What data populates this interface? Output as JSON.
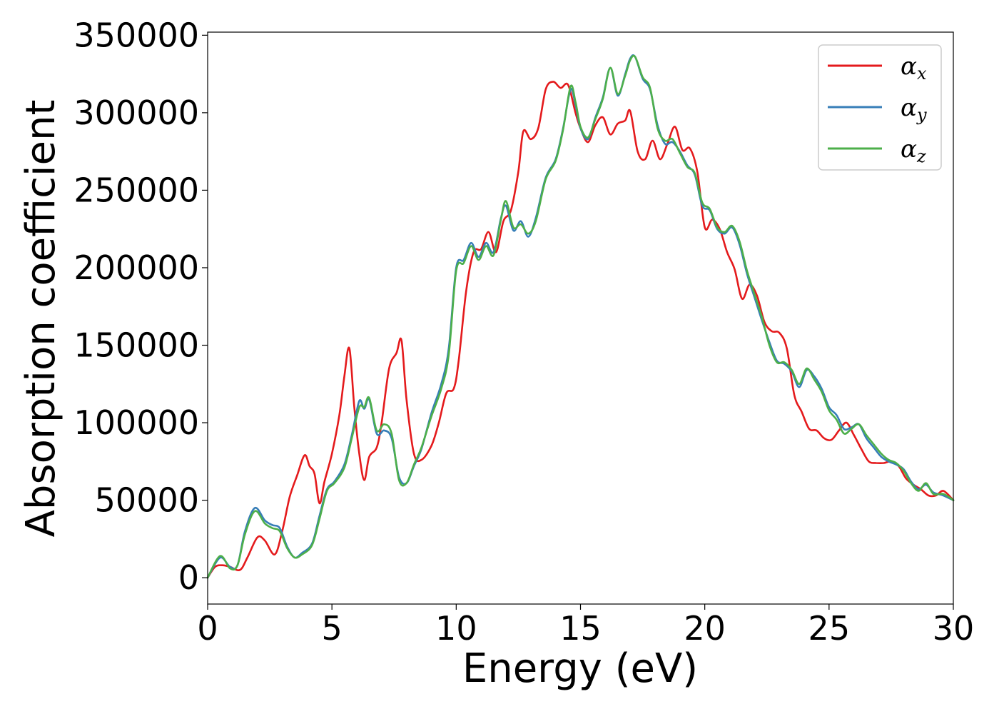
{
  "chart_data": {
    "type": "line",
    "xlabel": "Energy (eV)",
    "ylabel": "Absorption coefficient",
    "xlim": [
      0,
      30
    ],
    "ylim": [
      -17000,
      352000
    ],
    "xticks": [
      "0",
      "5",
      "10",
      "15",
      "20",
      "25",
      "30"
    ],
    "yticks": [
      "0",
      "50000",
      "100000",
      "150000",
      "200000",
      "250000",
      "300000",
      "350000"
    ],
    "grid": false,
    "legend_position": "top-right",
    "series": [
      {
        "name": "αx",
        "legend_base": "α",
        "legend_sub": "x",
        "color": "#e41a1c",
        "x": [
          0,
          0.3,
          0.6,
          0.9,
          1.3,
          1.6,
          2.0,
          2.3,
          2.7,
          3.0,
          3.3,
          3.6,
          3.9,
          4.1,
          4.3,
          4.5,
          4.7,
          5.0,
          5.3,
          5.5,
          5.7,
          5.9,
          6.1,
          6.3,
          6.5,
          6.8,
          7.0,
          7.3,
          7.6,
          7.8,
          8.0,
          8.3,
          8.6,
          9.0,
          9.3,
          9.6,
          9.9,
          10.1,
          10.4,
          10.7,
          11.0,
          11.3,
          11.6,
          11.9,
          12.2,
          12.5,
          12.7,
          13.0,
          13.3,
          13.6,
          13.9,
          14.2,
          14.5,
          14.8,
          15.0,
          15.3,
          15.6,
          15.9,
          16.2,
          16.5,
          16.8,
          17.0,
          17.3,
          17.6,
          17.9,
          18.2,
          18.5,
          18.8,
          19.1,
          19.4,
          19.7,
          20.0,
          20.3,
          20.6,
          20.9,
          21.2,
          21.5,
          21.8,
          22.1,
          22.4,
          22.7,
          23.0,
          23.3,
          23.6,
          23.9,
          24.2,
          24.5,
          24.8,
          25.1,
          25.4,
          25.7,
          26.0,
          26.3,
          26.6,
          26.9,
          27.2,
          27.5,
          27.8,
          28.1,
          28.4,
          28.7,
          29.0,
          29.3,
          29.6,
          30.0
        ],
        "y": [
          0,
          7000,
          8000,
          7000,
          5000,
          13000,
          26000,
          24000,
          15000,
          30000,
          52000,
          66000,
          79000,
          72000,
          67000,
          48000,
          62000,
          80000,
          105000,
          130000,
          148000,
          110000,
          80000,
          63000,
          78000,
          84000,
          100000,
          135000,
          145000,
          153000,
          115000,
          80000,
          76000,
          85000,
          100000,
          119000,
          122000,
          140000,
          185000,
          210000,
          212000,
          223000,
          210000,
          230000,
          237000,
          262000,
          288000,
          283000,
          290000,
          315000,
          320000,
          316000,
          318000,
          300000,
          290000,
          281000,
          292000,
          297000,
          286000,
          293000,
          295000,
          301000,
          275000,
          270000,
          282000,
          270000,
          280000,
          291000,
          276000,
          277000,
          262000,
          226000,
          231000,
          225000,
          210000,
          199000,
          180000,
          189000,
          182000,
          165000,
          159000,
          158000,
          148000,
          118000,
          107000,
          96000,
          95000,
          90000,
          89000,
          95000,
          100000,
          92000,
          83000,
          75000,
          74000,
          74000,
          75000,
          72000,
          64000,
          60000,
          57000,
          53000,
          53000,
          56000,
          50000
        ]
      },
      {
        "name": "αy",
        "legend_base": "α",
        "legend_sub": "y",
        "color": "#377eb8",
        "x": [
          0,
          0.5,
          0.9,
          1.2,
          1.5,
          1.9,
          2.3,
          2.6,
          2.9,
          3.2,
          3.5,
          3.8,
          4.2,
          4.5,
          4.8,
          5.1,
          5.5,
          5.8,
          6.1,
          6.3,
          6.5,
          6.8,
          7.1,
          7.4,
          7.7,
          8.0,
          8.3,
          8.6,
          9.0,
          9.4,
          9.7,
          10.0,
          10.3,
          10.6,
          10.9,
          11.2,
          11.5,
          11.8,
          12.0,
          12.3,
          12.6,
          12.9,
          13.2,
          13.6,
          14.0,
          14.3,
          14.6,
          14.8,
          15.0,
          15.3,
          15.6,
          15.9,
          16.2,
          16.5,
          16.8,
          17.0,
          17.2,
          17.5,
          17.8,
          18.1,
          18.4,
          18.7,
          19.0,
          19.3,
          19.6,
          19.9,
          20.2,
          20.5,
          20.8,
          21.1,
          21.4,
          21.7,
          22.0,
          22.3,
          22.6,
          22.9,
          23.2,
          23.5,
          23.8,
          24.1,
          24.4,
          24.7,
          25.0,
          25.3,
          25.6,
          25.9,
          26.2,
          26.5,
          26.8,
          27.1,
          27.4,
          27.7,
          28.0,
          28.3,
          28.6,
          28.9,
          29.2,
          29.6,
          30.0
        ],
        "y": [
          0,
          13000,
          7000,
          8000,
          30000,
          45000,
          37000,
          34000,
          32000,
          20000,
          13000,
          16000,
          22000,
          40000,
          57000,
          62000,
          73000,
          92000,
          114000,
          109000,
          115000,
          93000,
          95000,
          90000,
          65000,
          61000,
          72000,
          83000,
          106000,
          125000,
          148000,
          200000,
          205000,
          216000,
          207000,
          216000,
          210000,
          232000,
          240000,
          224000,
          230000,
          220000,
          232000,
          258000,
          270000,
          290000,
          315000,
          305000,
          290000,
          283000,
          297000,
          310000,
          329000,
          311000,
          325000,
          335000,
          336000,
          322000,
          315000,
          292000,
          280000,
          281000,
          275000,
          266000,
          260000,
          240000,
          237000,
          225000,
          222000,
          226000,
          215000,
          196000,
          181000,
          166000,
          152000,
          140000,
          138000,
          133000,
          123000,
          134000,
          130000,
          122000,
          110000,
          105000,
          96000,
          97000,
          99000,
          90000,
          84000,
          78000,
          75000,
          73000,
          70000,
          62000,
          57000,
          60000,
          55000,
          53000,
          50000
        ]
      },
      {
        "name": "αz",
        "legend_base": "α",
        "legend_sub": "z",
        "color": "#4daf4a",
        "x": [
          0,
          0.5,
          0.9,
          1.2,
          1.5,
          1.9,
          2.3,
          2.6,
          2.9,
          3.2,
          3.5,
          3.8,
          4.2,
          4.5,
          4.8,
          5.1,
          5.5,
          5.8,
          6.1,
          6.3,
          6.5,
          6.8,
          7.1,
          7.4,
          7.7,
          8.0,
          8.3,
          8.6,
          9.0,
          9.4,
          9.7,
          10.0,
          10.3,
          10.6,
          10.9,
          11.2,
          11.5,
          11.8,
          12.0,
          12.3,
          12.6,
          12.9,
          13.2,
          13.6,
          14.0,
          14.3,
          14.6,
          14.8,
          15.0,
          15.3,
          15.6,
          15.9,
          16.2,
          16.5,
          16.8,
          17.0,
          17.2,
          17.5,
          17.8,
          18.1,
          18.4,
          18.7,
          19.0,
          19.3,
          19.6,
          19.9,
          20.2,
          20.5,
          20.8,
          21.1,
          21.4,
          21.7,
          22.0,
          22.3,
          22.6,
          22.9,
          23.2,
          23.5,
          23.8,
          24.1,
          24.4,
          24.7,
          25.0,
          25.3,
          25.6,
          25.9,
          26.2,
          26.5,
          26.8,
          27.1,
          27.4,
          27.7,
          28.0,
          28.3,
          28.6,
          28.9,
          29.2,
          29.6,
          30.0
        ],
        "y": [
          0,
          14000,
          6000,
          8000,
          28000,
          43000,
          35000,
          32000,
          30000,
          19000,
          13000,
          15000,
          21000,
          38000,
          56000,
          61000,
          71000,
          90000,
          110000,
          110000,
          116000,
          95000,
          99000,
          93000,
          63000,
          61000,
          73000,
          84000,
          104000,
          122000,
          144000,
          198000,
          203000,
          214000,
          205000,
          214000,
          208000,
          231000,
          243000,
          226000,
          228000,
          222000,
          230000,
          257000,
          269000,
          289000,
          317000,
          307000,
          291000,
          284000,
          296000,
          309000,
          329000,
          312000,
          324000,
          334000,
          336000,
          323000,
          316000,
          290000,
          282000,
          283000,
          274000,
          265000,
          261000,
          242000,
          238000,
          226000,
          223000,
          227000,
          217000,
          198000,
          183000,
          168000,
          150000,
          139000,
          139000,
          134000,
          125000,
          135000,
          128000,
          120000,
          108000,
          102000,
          93000,
          96000,
          99000,
          92000,
          86000,
          80000,
          76000,
          74000,
          69000,
          61000,
          56000,
          61000,
          54000,
          54000,
          50000
        ]
      }
    ]
  }
}
